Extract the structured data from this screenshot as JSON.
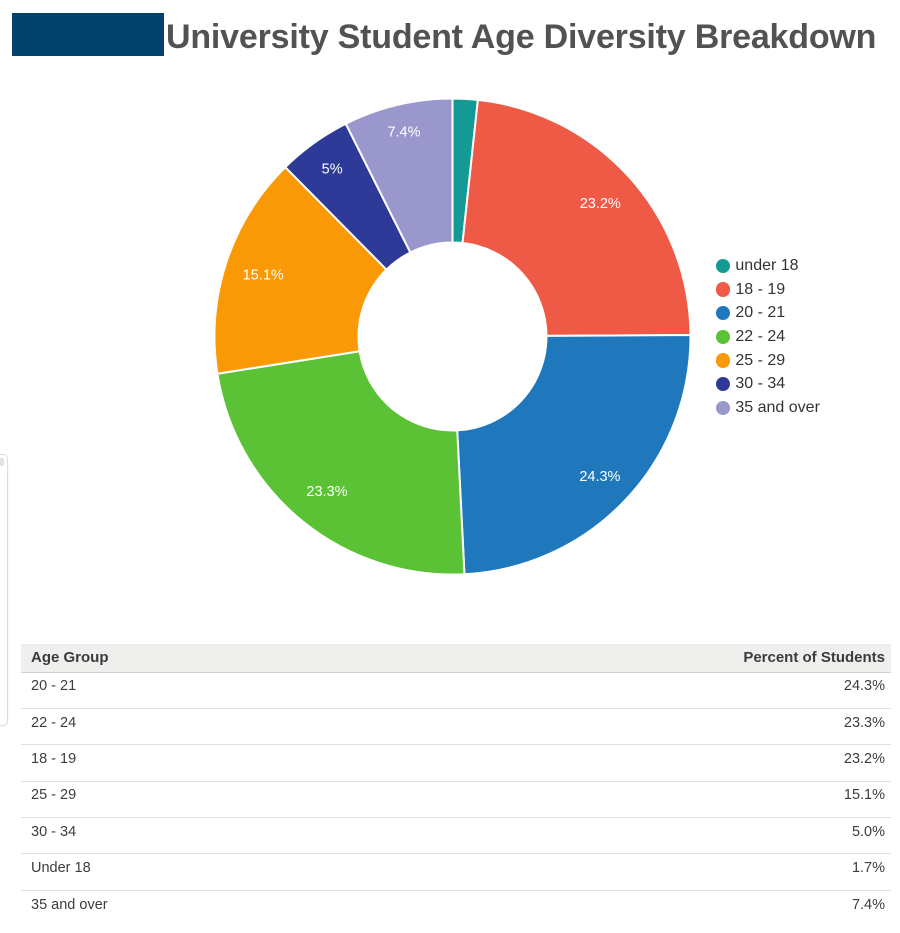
{
  "header": {
    "title": "University Student Age Diversity Breakdown",
    "logo_color": "#03426a"
  },
  "chart_data": {
    "type": "pie",
    "subtype": "donut",
    "title": "University Student Age Diversity Breakdown",
    "legend_position": "right",
    "slice_label_color": "#ffffff",
    "series": [
      {
        "label": "under 18",
        "value": 1.7,
        "color": "#139a94",
        "slice_label": ""
      },
      {
        "label": "18 - 19",
        "value": 23.2,
        "color": "#ef5a46",
        "slice_label": "23.2%"
      },
      {
        "label": "20 - 21",
        "value": 24.3,
        "color": "#1f77bc",
        "slice_label": "24.3%"
      },
      {
        "label": "22 - 24",
        "value": 23.3,
        "color": "#5bc236",
        "slice_label": "23.3%"
      },
      {
        "label": "25 - 29",
        "value": 15.1,
        "color": "#f99906",
        "slice_label": "15.1%"
      },
      {
        "label": "30 - 34",
        "value": 5.0,
        "color": "#2e3a97",
        "slice_label": "5%"
      },
      {
        "label": "35 and over",
        "value": 7.4,
        "color": "#9a97cd",
        "slice_label": "7.4%"
      }
    ]
  },
  "table": {
    "columns": [
      "Age Group",
      "Percent of Students"
    ],
    "rows": [
      [
        "20 - 21",
        "24.3%"
      ],
      [
        "22 - 24",
        "23.3%"
      ],
      [
        "18 - 19",
        "23.2%"
      ],
      [
        "25 - 29",
        "15.1%"
      ],
      [
        "30 - 34",
        "5.0%"
      ],
      [
        "Under 18",
        "1.7%"
      ],
      [
        "35 and over",
        "7.4%"
      ]
    ]
  }
}
